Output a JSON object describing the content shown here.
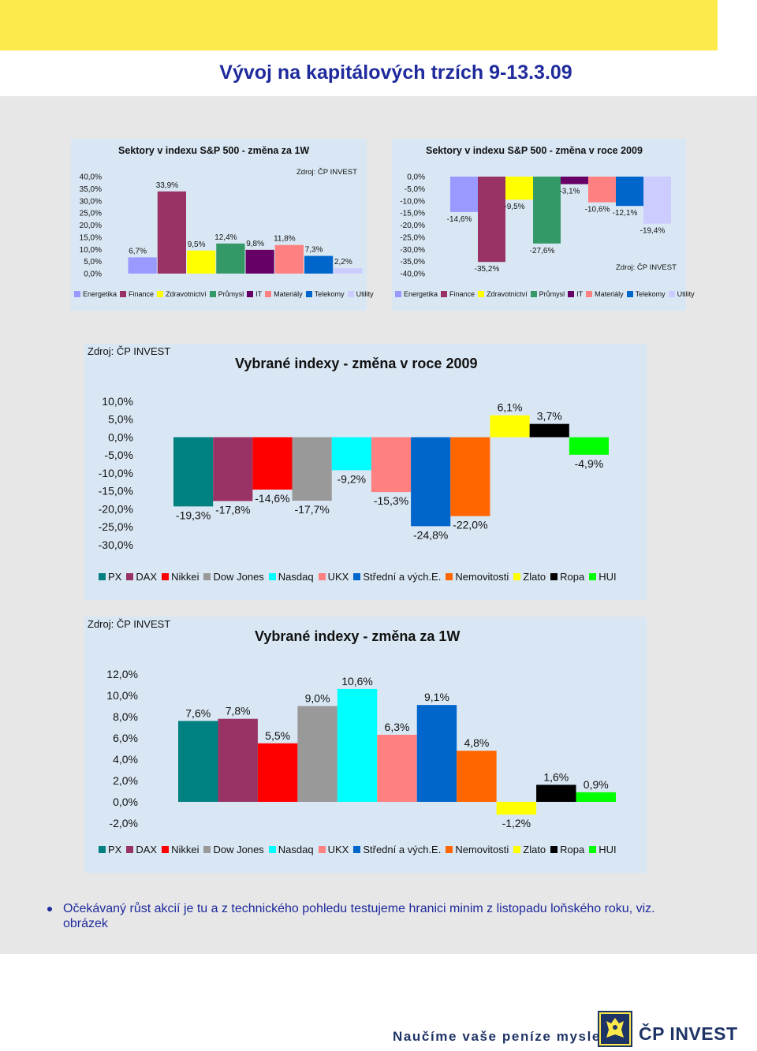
{
  "page": {
    "title": "Vývoj na kapitálových trzích 9-13.3.09",
    "bullet": "Očekávaný růst akcií je tu a z technického pohledu testujeme hranici minim z listopadu loňského roku, viz. obrázek",
    "slogan": "Naučíme vaše peníze myslet",
    "logo": "ČP INVEST"
  },
  "colors": {
    "top_band": "#fce94a",
    "title_text": "#1f2a9c",
    "panel_bg": "#d9e7f4",
    "page_bg": "#e7e7e7"
  },
  "chart_data": [
    {
      "id": "sp500_1w",
      "type": "bar",
      "title": "Sektory v indexu S&P 500 - změna za 1W",
      "source": "Zdroj: ČP INVEST",
      "categories": [
        "Energetika",
        "Finance",
        "Zdravotnictví",
        "Průmysl",
        "IT",
        "Materiály",
        "Telekomy",
        "Utility"
      ],
      "values": [
        6.7,
        33.9,
        9.5,
        12.4,
        9.8,
        11.8,
        7.3,
        2.2
      ],
      "labels": [
        "6,7%",
        "33,9%",
        "9,5%",
        "12,4%",
        "9,8%",
        "11,8%",
        "7,3%",
        "2,2%"
      ],
      "colors": [
        "#9999ff",
        "#993366",
        "#ffff00",
        "#339966",
        "#660066",
        "#ff8080",
        "#0066cc",
        "#ccccff"
      ],
      "yticks": [
        "40,0%",
        "35,0%",
        "30,0%",
        "25,0%",
        "20,0%",
        "15,0%",
        "10,0%",
        "5,0%",
        "0,0%"
      ],
      "ylim": [
        0,
        40
      ],
      "legend": "bottom"
    },
    {
      "id": "sp500_2009",
      "type": "bar",
      "title": "Sektory v indexu S&P 500 - změna v roce 2009",
      "source": "Zdroj: ČP INVEST",
      "categories": [
        "Energetika",
        "Finance",
        "Zdravotnictví",
        "Průmysl",
        "IT",
        "Materiály",
        "Telekomy",
        "Utility"
      ],
      "values": [
        -14.6,
        -35.2,
        -9.5,
        -27.6,
        -3.1,
        -10.6,
        -12.1,
        -19.4
      ],
      "labels": [
        "-14,6%",
        "-35,2%",
        "-9,5%",
        "-27,6%",
        "-3,1%",
        "-10,6%",
        "-12,1%",
        "-19,4%"
      ],
      "colors": [
        "#9999ff",
        "#993366",
        "#ffff00",
        "#339966",
        "#660066",
        "#ff8080",
        "#0066cc",
        "#ccccff"
      ],
      "yticks": [
        "0,0%",
        "-5,0%",
        "-10,0%",
        "-15,0%",
        "-20,0%",
        "-25,0%",
        "-30,0%",
        "-35,0%",
        "-40,0%"
      ],
      "ylim": [
        -40,
        0
      ],
      "legend": "bottom"
    },
    {
      "id": "indexes_2009",
      "type": "bar",
      "title": "Vybrané indexy - změna v roce 2009",
      "source": "Zdroj: ČP INVEST",
      "categories": [
        "PX",
        "DAX",
        "Nikkei",
        "Dow Jones",
        "Nasdaq",
        "UKX",
        "Střední a vých.E.",
        "Nemovitosti",
        "Zlato",
        "Ropa",
        "HUI"
      ],
      "values": [
        -19.3,
        -17.8,
        -14.6,
        -17.7,
        -9.2,
        -15.3,
        -24.8,
        -22.0,
        6.1,
        3.7,
        -4.9
      ],
      "labels": [
        "-19,3%",
        "-17,8%",
        "-14,6%",
        "-17,7%",
        "-9,2%",
        "-15,3%",
        "-24,8%",
        "-22,0%",
        "6,1%",
        "3,7%",
        "-4,9%"
      ],
      "colors": [
        "#008080",
        "#993366",
        "#ff0000",
        "#999999",
        "#00ffff",
        "#ff8080",
        "#0066cc",
        "#ff6600",
        "#ffff00",
        "#000000",
        "#00ff00"
      ],
      "yticks": [
        "10,0%",
        "5,0%",
        "0,0%",
        "-5,0%",
        "-10,0%",
        "-15,0%",
        "-20,0%",
        "-25,0%",
        "-30,0%"
      ],
      "ylim": [
        -30,
        10
      ],
      "legend": "bottom"
    },
    {
      "id": "indexes_1w",
      "type": "bar",
      "title": "Vybrané indexy - změna za 1W",
      "source": "Zdroj: ČP INVEST",
      "categories": [
        "PX",
        "DAX",
        "Nikkei",
        "Dow Jones",
        "Nasdaq",
        "UKX",
        "Střední a vých.E.",
        "Nemovitosti",
        "Zlato",
        "Ropa",
        "HUI"
      ],
      "values": [
        7.6,
        7.8,
        5.5,
        9.0,
        10.6,
        6.3,
        9.1,
        4.8,
        -1.2,
        1.6,
        0.9
      ],
      "labels": [
        "7,6%",
        "7,8%",
        "5,5%",
        "9,0%",
        "10,6%",
        "6,3%",
        "9,1%",
        "4,8%",
        "-1,2%",
        "1,6%",
        "0,9%"
      ],
      "colors": [
        "#008080",
        "#993366",
        "#ff0000",
        "#999999",
        "#00ffff",
        "#ff8080",
        "#0066cc",
        "#ff6600",
        "#ffff00",
        "#000000",
        "#00ff00"
      ],
      "yticks": [
        "12,0%",
        "10,0%",
        "8,0%",
        "6,0%",
        "4,0%",
        "2,0%",
        "0,0%",
        "-2,0%"
      ],
      "ylim": [
        -2,
        12
      ],
      "legend": "bottom"
    }
  ]
}
